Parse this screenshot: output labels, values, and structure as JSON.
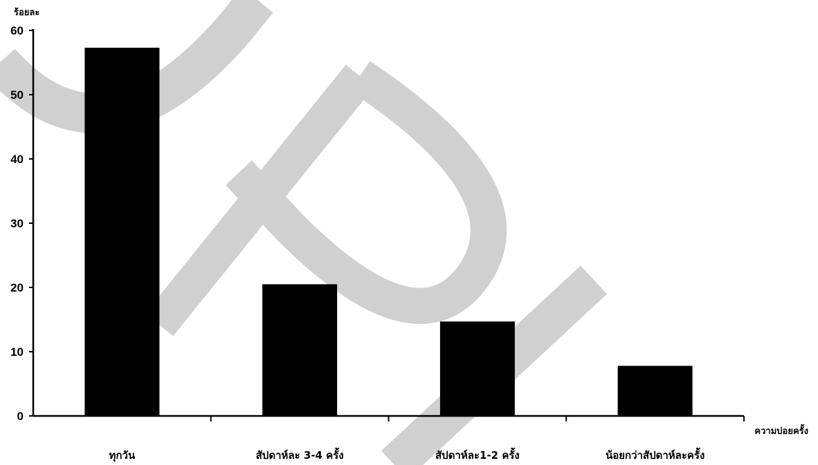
{
  "chart_data": {
    "type": "bar",
    "ylabel": "ร้อยละ",
    "xlabel": "ความบ่อยครั้ง",
    "categories": [
      "ทุกวัน",
      "สัปดาห์ละ 3-4 ครั้ง",
      "สัปดาห์ละ1-2 ครั้ง",
      "น้อยกว่าสัปดาห์ละครั้ง"
    ],
    "values": [
      57.3,
      20.5,
      14.7,
      7.8
    ],
    "ylim": [
      0,
      60
    ],
    "yticks": [
      0,
      10,
      20,
      30,
      40,
      50,
      60
    ],
    "grid": false,
    "legend": "none",
    "bar_color": "#000000",
    "watermark_color": "#d0d0d0"
  }
}
